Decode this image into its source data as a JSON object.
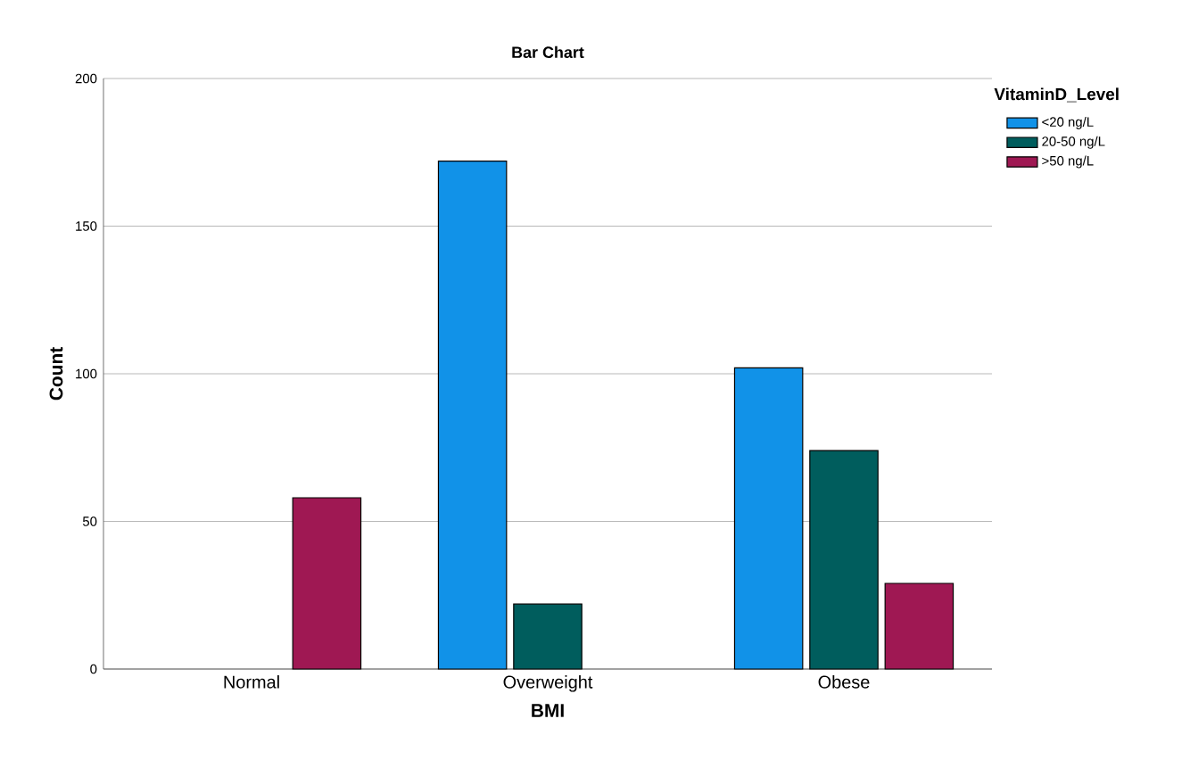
{
  "chart_data": {
    "type": "bar",
    "title": "Bar Chart",
    "xlabel": "BMI",
    "ylabel": "Count",
    "legend_title": "VitaminD_Level",
    "categories": [
      "Normal",
      "Overweight",
      "Obese"
    ],
    "series": [
      {
        "name": "<20 ng/L",
        "color": "#1192e8",
        "values": [
          null,
          172,
          102
        ]
      },
      {
        "name": "20-50 ng/L",
        "color": "#005d5d",
        "values": [
          null,
          22,
          74
        ]
      },
      {
        "name": ">50 ng/L",
        "color": "#9f1853",
        "values": [
          58,
          null,
          29
        ]
      }
    ],
    "ylim": [
      0,
      200
    ],
    "yticks": [
      0,
      50,
      100,
      150,
      200
    ],
    "grid": "y",
    "legend": "top right"
  }
}
